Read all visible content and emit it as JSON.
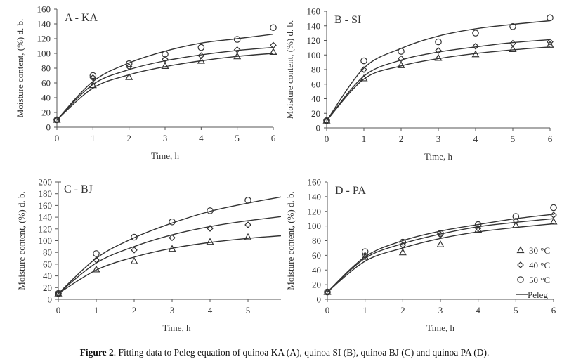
{
  "caption": {
    "label": "Figure 2",
    "text": ". Fitting data to Peleg equation of quinoa KA (A), quinoa SI (B), quinoa BJ (C) and quinoa PA (D)."
  },
  "legend": {
    "entries": [
      {
        "label": "30 °C",
        "marker": "triangle"
      },
      {
        "label": "40 °C",
        "marker": "diamond"
      },
      {
        "label": "50 °C",
        "marker": "circle"
      },
      {
        "label": "Peleg",
        "marker": "line"
      }
    ],
    "placement": "right, inside panel D"
  },
  "colors": {
    "ink": "#333333",
    "axis": "#555555"
  },
  "chart_data": [
    {
      "type": "line",
      "title": "A - KA",
      "xlabel": "Time, h",
      "ylabel": "Moisture content, (%) d. b.",
      "xlim": [
        0,
        6
      ],
      "ylim": [
        0,
        160
      ],
      "xticks": [
        0,
        1,
        2,
        3,
        4,
        5,
        6
      ],
      "yticks": [
        0,
        20,
        40,
        60,
        80,
        100,
        120,
        140,
        160
      ],
      "x": [
        0,
        1,
        2,
        3,
        4,
        5,
        6
      ],
      "series": [
        {
          "name": "30 °C",
          "marker": "triangle",
          "values": [
            10,
            57,
            68,
            83,
            90,
            96,
            102
          ],
          "fit": [
            10,
            53,
            71,
            82,
            90,
            96,
            100
          ]
        },
        {
          "name": "40 °C",
          "marker": "diamond",
          "values": [
            10,
            67,
            82,
            92,
            97,
            105,
            111
          ],
          "fit": [
            10,
            58,
            78,
            90,
            98,
            104,
            108
          ]
        },
        {
          "name": "50 °C",
          "marker": "circle",
          "values": [
            10,
            70,
            86,
            99,
            108,
            119,
            135
          ],
          "fit": [
            10,
            62,
            87,
            103,
            114,
            120,
            126
          ]
        }
      ]
    },
    {
      "type": "line",
      "title": "B - SI",
      "xlabel": "Time, h",
      "ylabel": "Moisture content, (%) d. b.",
      "xlim": [
        0,
        6
      ],
      "ylim": [
        0,
        160
      ],
      "xticks": [
        0,
        1,
        2,
        3,
        4,
        5,
        6
      ],
      "yticks": [
        0,
        20,
        40,
        60,
        80,
        100,
        120,
        140,
        160
      ],
      "x": [
        0,
        1,
        2,
        3,
        4,
        5,
        6
      ],
      "series": [
        {
          "name": "30 °C",
          "marker": "triangle",
          "values": [
            10,
            68,
            86,
            96,
            101,
            108,
            114
          ],
          "fit": [
            10,
            67,
            85,
            95,
            102,
            107,
            111
          ]
        },
        {
          "name": "40 °C",
          "marker": "diamond",
          "values": [
            10,
            80,
            95,
            106,
            112,
            116,
            118
          ],
          "fit": [
            10,
            71,
            93,
            104,
            111,
            117,
            121
          ]
        },
        {
          "name": "50 °C",
          "marker": "circle",
          "values": [
            10,
            92,
            105,
            118,
            130,
            139,
            151
          ],
          "fit": [
            10,
            82,
            109,
            126,
            136,
            142,
            147
          ]
        }
      ]
    },
    {
      "type": "line",
      "title": "C - BJ",
      "xlabel": "Time, h",
      "ylabel": "Moisture content, (%) d. b.",
      "xlim": [
        0,
        5.8
      ],
      "ylim": [
        0,
        200
      ],
      "xticks": [
        0,
        1,
        2,
        3,
        4,
        5
      ],
      "yticks": [
        0,
        20,
        40,
        60,
        80,
        100,
        120,
        140,
        160,
        180,
        200
      ],
      "x": [
        0,
        1,
        2,
        3,
        4,
        5
      ],
      "fit_x": [
        0,
        1,
        2,
        3,
        4,
        5,
        6
      ],
      "series": [
        {
          "name": "30 °C",
          "marker": "triangle",
          "values": [
            10,
            51,
            65,
            86,
            98,
            106
          ],
          "fit": [
            10,
            50,
            72,
            87,
            97,
            104,
            109
          ]
        },
        {
          "name": "40 °C",
          "marker": "diamond",
          "values": [
            10,
            67,
            84,
            105,
            121,
            127
          ],
          "fit": [
            10,
            62,
            90,
            110,
            124,
            134,
            142
          ]
        },
        {
          "name": "50 °C",
          "marker": "circle",
          "values": [
            10,
            78,
            106,
            132,
            151,
            169
          ],
          "fit": [
            10,
            70,
            105,
            130,
            150,
            164,
            176
          ]
        }
      ]
    },
    {
      "type": "line",
      "title": "D - PA",
      "xlabel": "Time, h",
      "ylabel": "Moisture content, (%) d. b.",
      "xlim": [
        0,
        6
      ],
      "ylim": [
        0,
        160
      ],
      "xticks": [
        0,
        1,
        2,
        3,
        4,
        5,
        6
      ],
      "yticks": [
        0,
        20,
        40,
        60,
        80,
        100,
        120,
        140,
        160
      ],
      "x": [
        0,
        1,
        2,
        3,
        4,
        5,
        6
      ],
      "series": [
        {
          "name": "30 °C",
          "marker": "triangle",
          "values": [
            10,
            58,
            64,
            75,
            95,
            101,
            106
          ],
          "fit": [
            10,
            52,
            70,
            83,
            92,
            98,
            103
          ]
        },
        {
          "name": "40 °C",
          "marker": "diamond",
          "values": [
            10,
            60,
            74,
            88,
            97,
            107,
            115
          ],
          "fit": [
            10,
            56,
            76,
            89,
            99,
            105,
            110
          ]
        },
        {
          "name": "50 °C",
          "marker": "circle",
          "values": [
            10,
            65,
            78,
            90,
            102,
            113,
            125
          ],
          "fit": [
            10,
            58,
            80,
            93,
            102,
            110,
            116
          ]
        }
      ]
    }
  ]
}
